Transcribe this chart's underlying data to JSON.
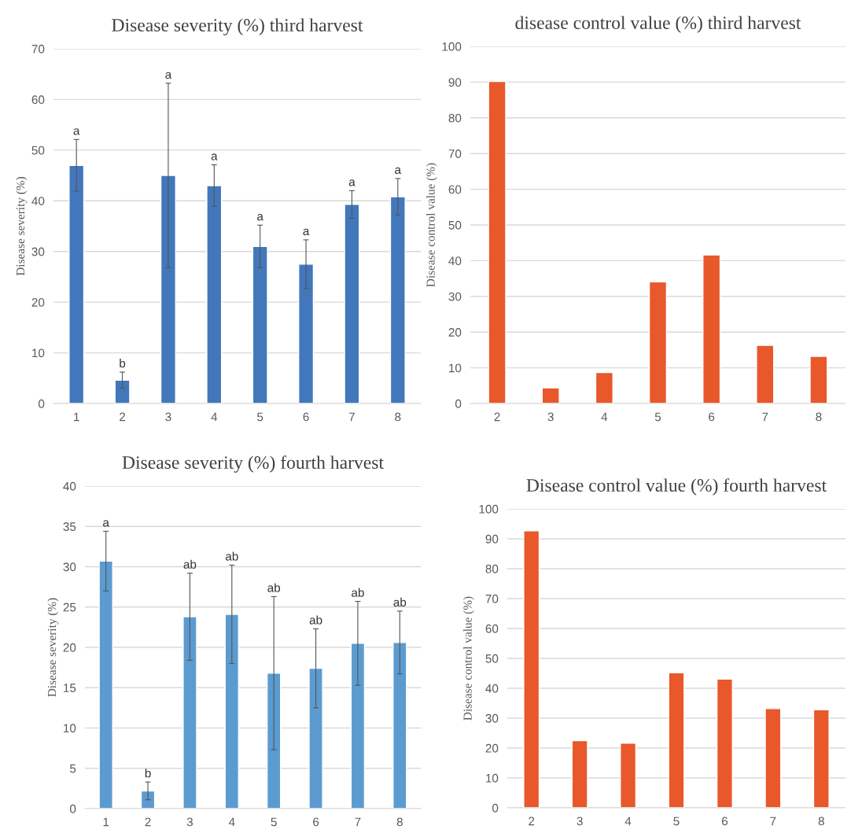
{
  "chart_data": [
    {
      "type": "bar",
      "title": "Disease severity (%) third harvest",
      "ylabel": "Disease severity (%)",
      "categories": [
        "1",
        "2",
        "3",
        "4",
        "5",
        "6",
        "7",
        "8"
      ],
      "values": [
        47,
        4.6,
        45,
        43,
        31,
        27.5,
        39.3,
        40.8
      ],
      "color": "#4277bb",
      "errors": [
        5.1,
        1.6,
        18.2,
        4.1,
        4.2,
        4.8,
        2.7,
        3.6
      ],
      "ylim": [
        0,
        70
      ],
      "yticks": [
        0,
        10,
        20,
        30,
        40,
        50,
        60,
        70
      ],
      "grid": "y",
      "annotations": [
        {
          "text": "a",
          "x": "1",
          "y": 52.1
        },
        {
          "text": "b",
          "x": "2",
          "y": 6.2
        },
        {
          "text": "a",
          "x": "3",
          "y": 63.2
        },
        {
          "text": "a",
          "x": "4",
          "y": 47.1
        },
        {
          "text": "a",
          "x": "5",
          "y": 35.2
        },
        {
          "text": "a",
          "x": "6",
          "y": 32.3
        },
        {
          "text": "a",
          "x": "7",
          "y": 42
        },
        {
          "text": "a",
          "x": "8",
          "y": 44.4
        }
      ]
    },
    {
      "type": "bar",
      "title": "disease control value (%) third harvest",
      "ylabel": "Disease control value (%)",
      "categories": [
        "2",
        "3",
        "4",
        "5",
        "6",
        "7",
        "8"
      ],
      "values": [
        90.2,
        4.4,
        8.7,
        34.1,
        41.6,
        16.3,
        13.2
      ],
      "color": "#e8582a",
      "ylim": [
        0,
        100
      ],
      "yticks": [
        0,
        10,
        20,
        30,
        40,
        50,
        60,
        70,
        80,
        90,
        100
      ],
      "grid": "y"
    },
    {
      "type": "bar",
      "title": "Disease severity (%) fourth harvest",
      "ylabel": "Disease severity (%)",
      "categories": [
        "1",
        "2",
        "3",
        "4",
        "5",
        "6",
        "7",
        "8"
      ],
      "values": [
        30.7,
        2.2,
        23.8,
        24.1,
        16.8,
        17.4,
        20.5,
        20.6
      ],
      "color": "#5b9bd0",
      "errors": [
        3.7,
        1.1,
        5.4,
        6.1,
        9.5,
        4.9,
        5.2,
        3.9
      ],
      "ylim": [
        0,
        40
      ],
      "yticks": [
        0,
        5,
        10,
        15,
        20,
        25,
        30,
        35,
        40
      ],
      "grid": "y",
      "annotations": [
        {
          "text": "a",
          "x": "1",
          "y": 34.4
        },
        {
          "text": "b",
          "x": "2",
          "y": 3.3
        },
        {
          "text": "ab",
          "x": "3",
          "y": 29.2
        },
        {
          "text": "ab",
          "x": "4",
          "y": 30.2
        },
        {
          "text": "ab",
          "x": "5",
          "y": 26.3
        },
        {
          "text": "ab",
          "x": "6",
          "y": 22.3
        },
        {
          "text": "ab",
          "x": "7",
          "y": 25.7
        },
        {
          "text": "ab",
          "x": "8",
          "y": 24.5
        }
      ]
    },
    {
      "type": "bar",
      "title": "Disease control value (%) fourth harvest",
      "ylabel": "Disease control value (%)",
      "categories": [
        "2",
        "3",
        "4",
        "5",
        "6",
        "7",
        "8"
      ],
      "values": [
        92.7,
        22.5,
        21.6,
        45.2,
        43.1,
        33.2,
        32.8
      ],
      "color": "#e8582a",
      "ylim": [
        0,
        100
      ],
      "yticks": [
        0,
        10,
        20,
        30,
        40,
        50,
        60,
        70,
        80,
        90,
        100
      ],
      "grid": "y"
    }
  ]
}
